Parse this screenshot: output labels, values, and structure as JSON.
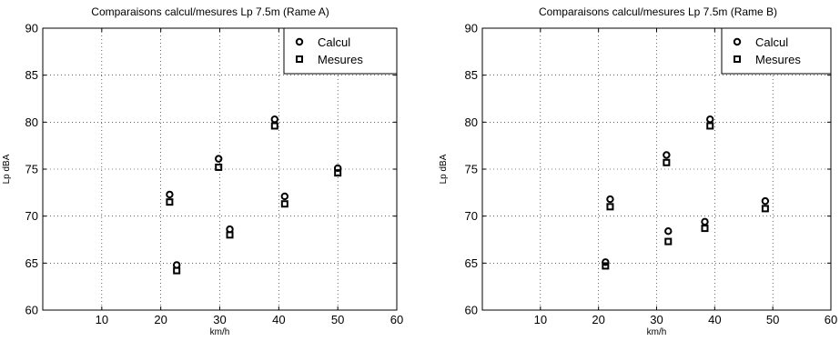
{
  "chart_data": [
    {
      "type": "scatter",
      "title": "Comparaisons calcul/mesures Lp 7.5m (Rame A)",
      "xlabel": "km/h",
      "ylabel": "Lp dBA",
      "xlim": [
        0,
        60
      ],
      "ylim": [
        60,
        90
      ],
      "xticks": [
        10,
        20,
        30,
        40,
        50,
        60
      ],
      "yticks": [
        60,
        65,
        70,
        75,
        80,
        85,
        90
      ],
      "grid": true,
      "legend_position": "top-right",
      "series": [
        {
          "name": "Calcul",
          "marker": "circle",
          "x": [
            21.5,
            22.7,
            29.8,
            31.7,
            39.3,
            41.0,
            50.0
          ],
          "y": [
            72.3,
            64.8,
            76.1,
            68.6,
            80.3,
            72.1,
            75.1
          ]
        },
        {
          "name": "Mesures",
          "marker": "square",
          "x": [
            21.5,
            22.7,
            29.8,
            31.7,
            39.3,
            41.0,
            50.0
          ],
          "y": [
            71.5,
            64.2,
            75.2,
            68.0,
            79.6,
            71.3,
            74.6
          ]
        }
      ]
    },
    {
      "type": "scatter",
      "title": "Comparaisons calcul/mesures Lp 7.5m (Rame B)",
      "xlabel": "km/h",
      "ylabel": "Lp dBA",
      "xlim": [
        0,
        60
      ],
      "ylim": [
        60,
        90
      ],
      "xticks": [
        10,
        20,
        30,
        40,
        50,
        60
      ],
      "yticks": [
        60,
        65,
        70,
        75,
        80,
        85,
        90
      ],
      "grid": true,
      "legend_position": "top-right",
      "series": [
        {
          "name": "Calcul",
          "marker": "circle",
          "x": [
            21.2,
            22.0,
            31.7,
            32.0,
            38.3,
            39.2,
            48.7
          ],
          "y": [
            65.1,
            71.8,
            76.5,
            68.4,
            69.4,
            80.3,
            71.6
          ]
        },
        {
          "name": "Mesures",
          "marker": "square",
          "x": [
            21.2,
            22.0,
            31.7,
            32.0,
            38.3,
            39.2,
            48.7
          ],
          "y": [
            64.7,
            71.0,
            75.7,
            67.3,
            68.7,
            79.6,
            70.8
          ]
        }
      ]
    }
  ]
}
